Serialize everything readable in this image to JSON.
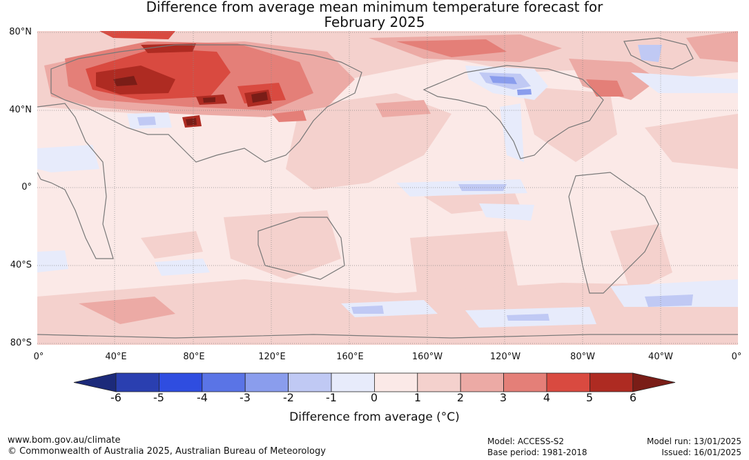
{
  "title": {
    "line1": "Difference from average mean minimum temperature forecast for",
    "line2": "February 2025"
  },
  "map": {
    "lat_labels": [
      "80°N",
      "40°N",
      "0°",
      "40°S",
      "80°S"
    ],
    "lon_labels": [
      "0°",
      "40°E",
      "80°E",
      "120°E",
      "160°E",
      "160°W",
      "120°W",
      "80°W",
      "40°W",
      "0°"
    ],
    "land_outline_color": "#777777",
    "grid_color": "#888888"
  },
  "colorbar": {
    "ticks": [
      "-6",
      "-5",
      "-4",
      "-3",
      "-2",
      "-1",
      "0",
      "1",
      "2",
      "3",
      "4",
      "5",
      "6"
    ],
    "under_color": "#1c2a7a",
    "colors": [
      "#2a3fb0",
      "#2f4de0",
      "#5a74e6",
      "#8a9ded",
      "#c0c9f4",
      "#e7ebfb",
      "#fbe9e7",
      "#f4d1cd",
      "#ecaaa5",
      "#e47f78",
      "#d94a40",
      "#ae2b22"
    ],
    "over_color": "#7a1d17",
    "label": "Difference from average (°C)"
  },
  "footer": {
    "website": "www.bom.gov.au/climate",
    "copyright": "© Commonwealth of Australia 2025, Australian Bureau of Meteorology",
    "model": "Model: ACCESS-S2",
    "base_period": "Base period: 1981-2018",
    "model_run": "Model run: 13/01/2025",
    "issued": "Issued: 16/01/2025"
  }
}
